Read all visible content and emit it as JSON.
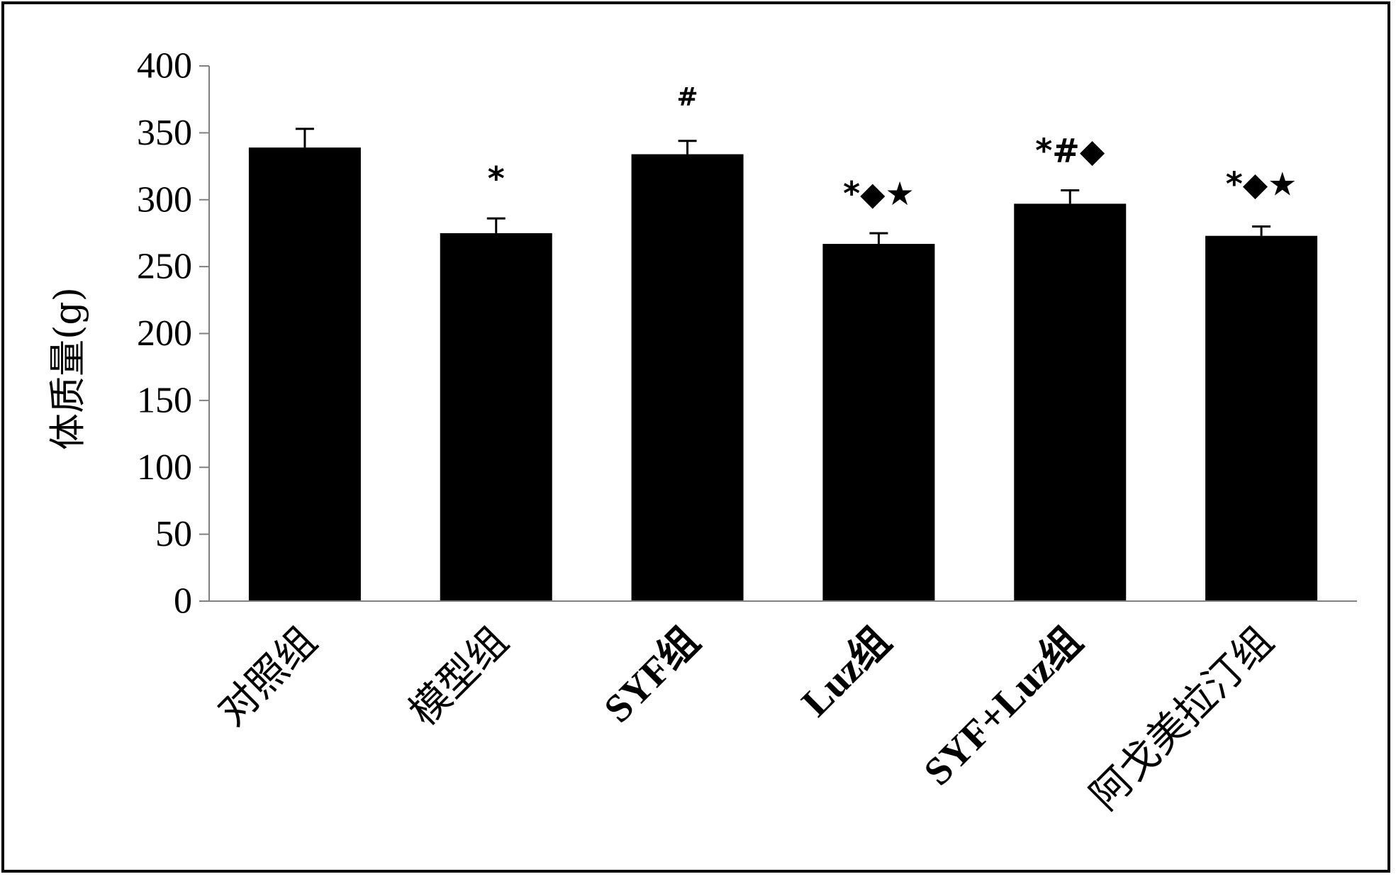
{
  "chart_data": {
    "type": "bar",
    "title": "",
    "xlabel": "",
    "ylabel": "体质量(g)",
    "ylim": [
      0,
      400
    ],
    "yticks": [
      0,
      50,
      100,
      150,
      200,
      250,
      300,
      350,
      400
    ],
    "ytick_labels": [
      "0",
      "50",
      "100",
      "150",
      "200",
      "250",
      "300",
      "350",
      "400"
    ],
    "grid": false,
    "legend": "none",
    "bar_color": "#000000",
    "categories": [
      "对照组",
      "模型组",
      "SYF组",
      "Luz组",
      "SYF+Luz组",
      "阿戈美拉汀组"
    ],
    "values": [
      339,
      275,
      334,
      267,
      297,
      273
    ],
    "errors": [
      14,
      11,
      10,
      8,
      10,
      7
    ],
    "annotations": [
      "",
      "*",
      "#",
      "*◆★",
      "*#◆",
      "*◆★"
    ]
  }
}
